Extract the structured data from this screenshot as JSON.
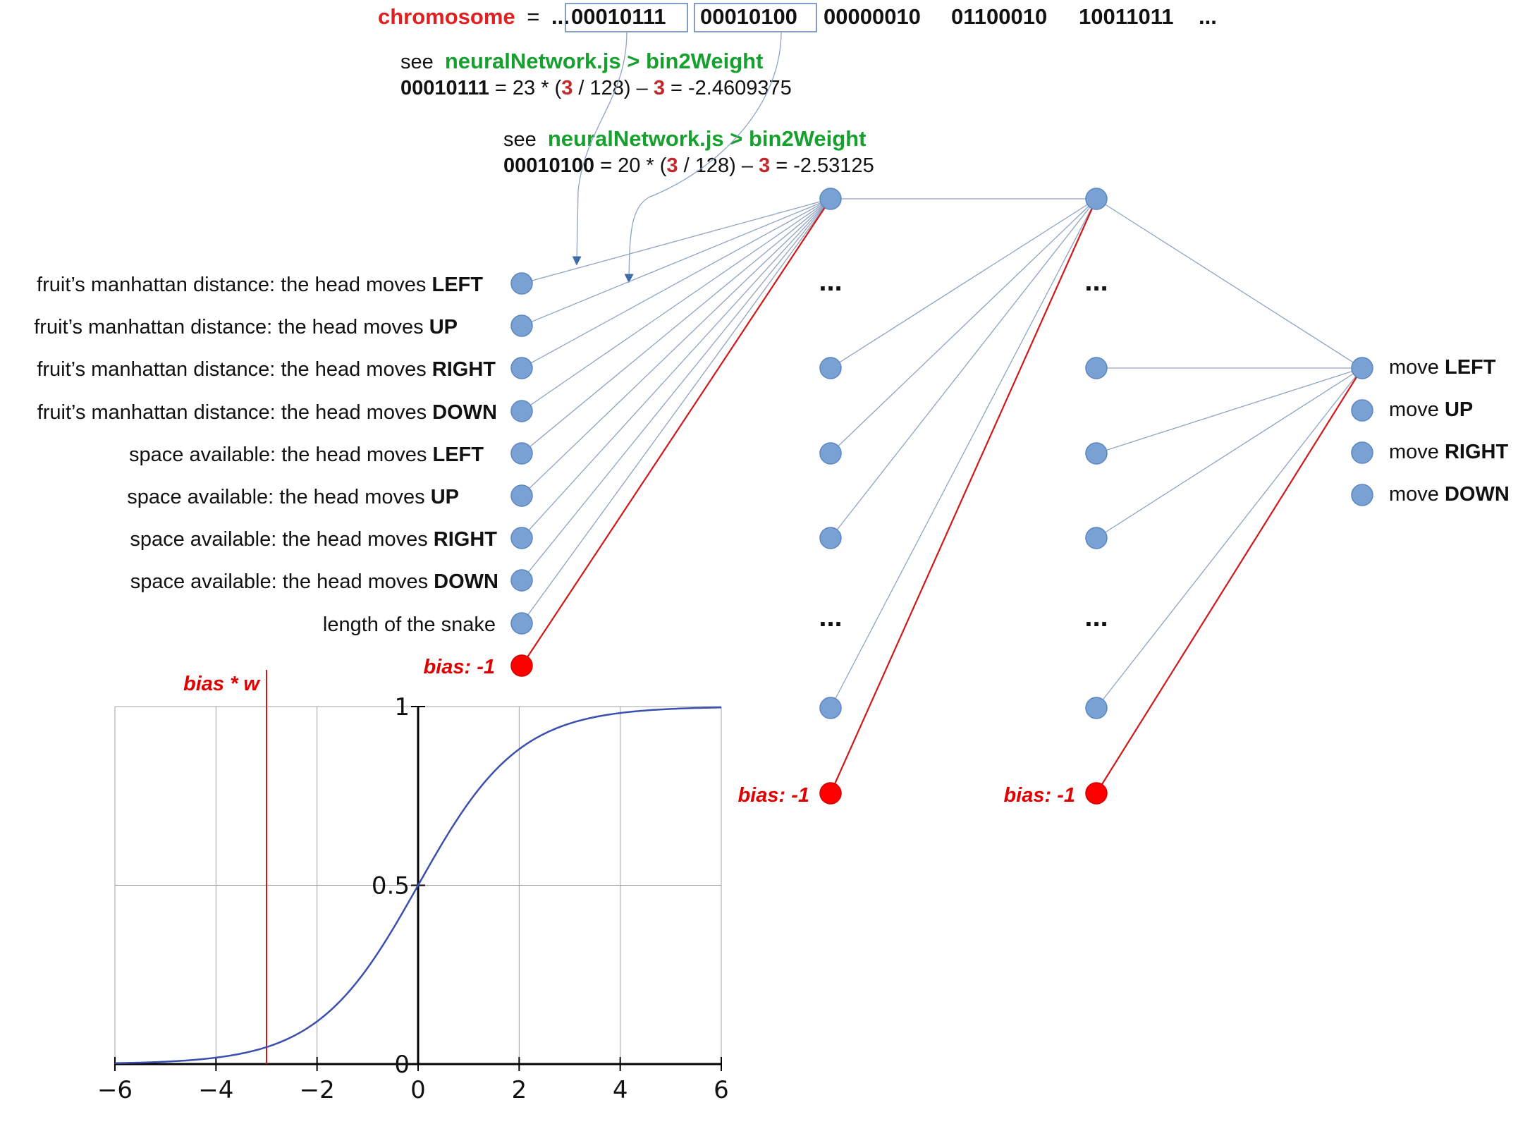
{
  "chromosome": {
    "label": "chromosome",
    "equals": "=",
    "lead": "...",
    "genes": [
      "00010111",
      "00010100",
      "00000010",
      "01100010",
      "10011011"
    ],
    "trail": "..."
  },
  "notes": [
    {
      "see": "see",
      "ref": "neuralNetwork.js > bin2Weight",
      "bits": "00010111",
      "pre": " = 23 * (",
      "three_a": "3",
      "mid": " / 128) – ",
      "three_b": "3",
      "post": " = -2.4609375"
    },
    {
      "see": "see",
      "ref": "neuralNetwork.js > bin2Weight",
      "bits": "00010100",
      "pre": " = 20 * (",
      "three_a": "3",
      "mid": " / 128) – ",
      "three_b": "3",
      "post": " = -2.53125"
    }
  ],
  "inputs": [
    {
      "text": "fruit’s manhattan distance: the head moves ",
      "dir": "LEFT"
    },
    {
      "text": "fruit’s manhattan distance: the head moves ",
      "dir": "UP"
    },
    {
      "text": "fruit’s manhattan distance: the head moves ",
      "dir": "RIGHT"
    },
    {
      "text": "fruit’s manhattan distance: the head moves ",
      "dir": "DOWN"
    },
    {
      "text": "space available: the head moves ",
      "dir": "LEFT"
    },
    {
      "text": "space available: the head moves ",
      "dir": "UP"
    },
    {
      "text": "space available: the head moves ",
      "dir": "RIGHT"
    },
    {
      "text": "space available: the head moves ",
      "dir": "DOWN"
    },
    {
      "text": "length of the snake",
      "dir": ""
    }
  ],
  "bias_label": "bias: -1",
  "ellipsis": "...",
  "outputs": [
    {
      "text": "move ",
      "dir": "LEFT"
    },
    {
      "text": "move ",
      "dir": "UP"
    },
    {
      "text": "move ",
      "dir": "RIGHT"
    },
    {
      "text": "move ",
      "dir": "DOWN"
    }
  ],
  "colors": {
    "node": "#7aa1d4",
    "bias_node": "#ff0000",
    "edge": "#8fa3c2",
    "bias_edge": "#d01818",
    "sigmoid": "#3b4fb0",
    "reference_green": "#16a02e"
  },
  "chart_data": {
    "type": "line",
    "function": "sigmoid 1/(1+e^-x)",
    "title": "",
    "xlabel": "",
    "ylabel": "",
    "xlim": [
      -6,
      6
    ],
    "ylim": [
      0,
      1
    ],
    "x_ticks": [
      "−6",
      "−4",
      "−2",
      "0",
      "2",
      "4",
      "6"
    ],
    "y_ticks": [
      "0",
      "0.5",
      "1"
    ],
    "grid": true,
    "series": [
      {
        "x": [
          -6,
          -5,
          -4,
          -3,
          -2,
          -1,
          0,
          1,
          2,
          3,
          4,
          5,
          6
        ],
        "y": [
          0.0025,
          0.0067,
          0.018,
          0.047,
          0.119,
          0.269,
          0.5,
          0.731,
          0.881,
          0.953,
          0.982,
          0.993,
          0.9975
        ]
      }
    ],
    "annotation": {
      "label": "bias * w",
      "x": -3
    }
  }
}
